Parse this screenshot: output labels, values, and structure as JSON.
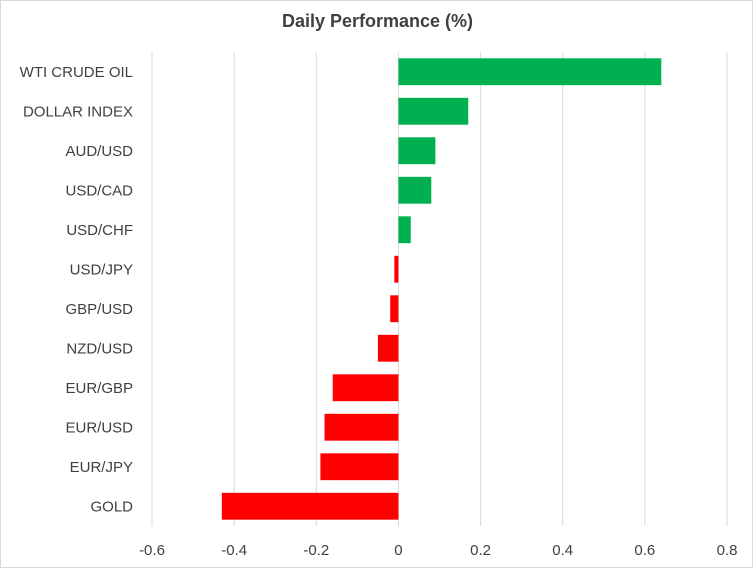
{
  "chart_data": {
    "type": "bar",
    "orientation": "horizontal",
    "title": "Daily Performance (%)",
    "xlabel": "",
    "ylabel": "",
    "categories": [
      "WTI CRUDE OIL",
      "DOLLAR INDEX",
      "AUD/USD",
      "USD/CAD",
      "USD/CHF",
      "USD/JPY",
      "GBP/USD",
      "NZD/USD",
      "EUR/GBP",
      "EUR/USD",
      "EUR/JPY",
      "GOLD"
    ],
    "values": [
      0.64,
      0.17,
      0.09,
      0.08,
      0.03,
      -0.01,
      -0.02,
      -0.05,
      -0.16,
      -0.18,
      -0.19,
      -0.43
    ],
    "xlim": [
      -0.6,
      0.8
    ],
    "ticks": [
      "-0.6",
      "-0.4",
      "-0.2",
      "0",
      "0.2",
      "0.4",
      "0.6",
      "0.8"
    ],
    "tick_values": [
      -0.6,
      -0.4,
      -0.2,
      0,
      0.2,
      0.4,
      0.6,
      0.8
    ],
    "grid": true,
    "legend": "none",
    "colors": {
      "positive": "#00b050",
      "negative": "#ff0000",
      "grid": "#d9d9d9"
    }
  }
}
